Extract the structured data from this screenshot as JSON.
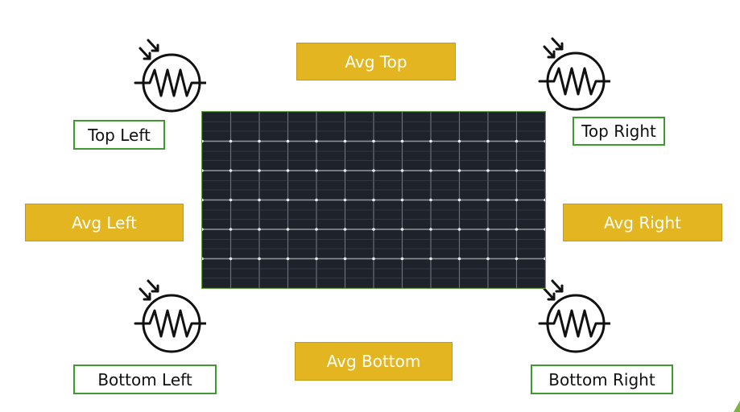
{
  "averages": {
    "top": "Avg Top",
    "left": "Avg Left",
    "right": "Avg Right",
    "bottom": "Avg Bottom"
  },
  "sensors": {
    "top_left": "Top Left",
    "top_right": "Top Right",
    "bottom_left": "Bottom Left",
    "bottom_right": "Bottom Right"
  },
  "colors": {
    "avg_fill": "#e2b521",
    "label_border": "#3d9a2f",
    "panel_cell": "#1e222b",
    "panel_grid": "#8e939b"
  },
  "icons": {
    "sensor": "light-dependent-resistor-icon",
    "panel": "solar-panel-image"
  }
}
